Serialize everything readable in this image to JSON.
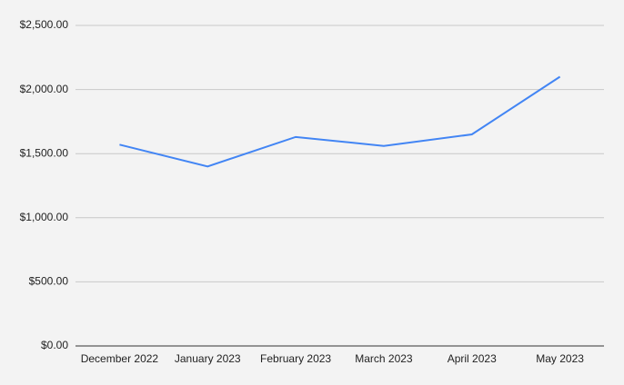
{
  "chart_data": {
    "type": "line",
    "categories": [
      "December 2022",
      "January 2023",
      "February 2023",
      "March 2023",
      "April 2023",
      "May 2023"
    ],
    "series": [
      {
        "color": "#4285f4",
        "values": [
          1570,
          1400,
          1630,
          1560,
          1650,
          2100
        ]
      }
    ],
    "ylim": [
      0,
      2500
    ],
    "yticks": [
      {
        "value": 0,
        "label": "$0.00"
      },
      {
        "value": 500,
        "label": "$500.00"
      },
      {
        "value": 1000,
        "label": "$1,000.00"
      },
      {
        "value": 1500,
        "label": "$1,500.00"
      },
      {
        "value": 2000,
        "label": "$2,000.00"
      },
      {
        "value": 2500,
        "label": "$2,500.00"
      }
    ],
    "grid": true
  }
}
